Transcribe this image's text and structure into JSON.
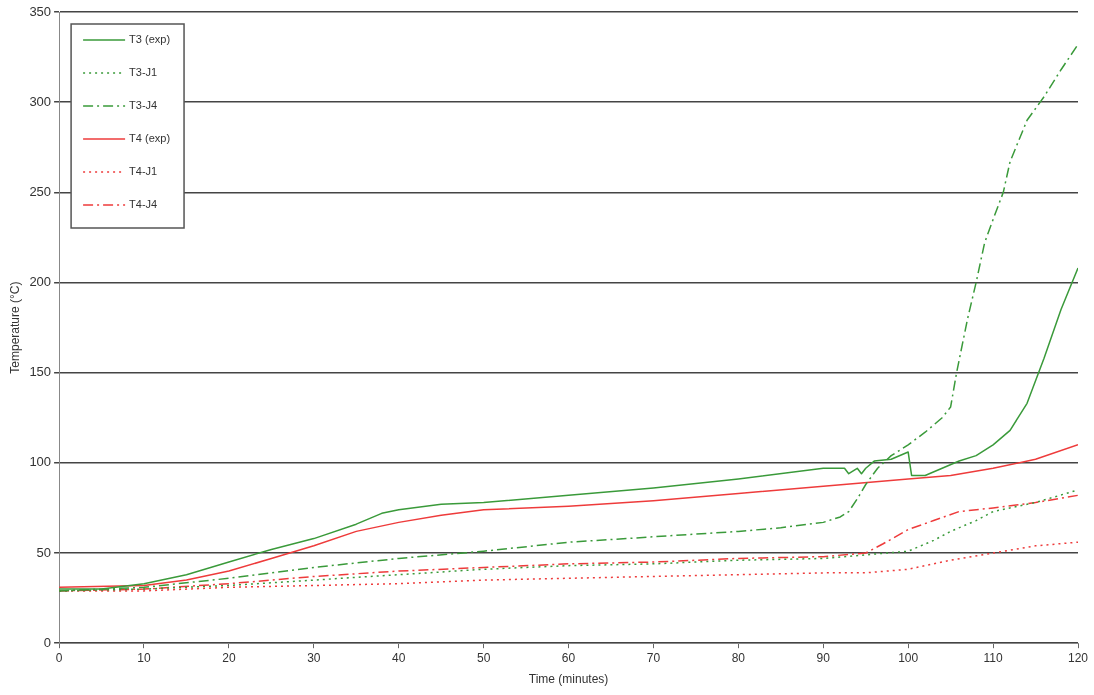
{
  "chart_data": {
    "type": "line",
    "xlabel": "Time (minutes)",
    "ylabel": "Temperature (°C)",
    "xlim": [
      0,
      120
    ],
    "xticks": [
      0,
      10,
      20,
      30,
      40,
      50,
      60,
      70,
      80,
      90,
      100,
      110,
      120
    ],
    "ylim": [
      0,
      350
    ],
    "yticks": [
      0,
      50,
      100,
      150,
      200,
      250,
      300,
      350
    ],
    "grid": "y",
    "legend": "top left",
    "marker": "none",
    "series": [
      {
        "name": "T3 (exp)",
        "color": "#3a9a3a",
        "line_style": "solid",
        "x": [
          0,
          5,
          10,
          15,
          20,
          25,
          30,
          35,
          38,
          40,
          45,
          50,
          60,
          70,
          80,
          90,
          92.5,
          93,
          94,
          94.5,
          95,
          96,
          98,
          100,
          100.4,
          102,
          104,
          106,
          108,
          110,
          112,
          114,
          116,
          118,
          120
        ],
        "values": [
          30,
          30,
          33,
          38,
          45,
          52,
          58,
          66,
          72,
          74,
          77,
          78,
          82,
          86,
          91,
          97,
          97,
          94,
          97,
          94,
          97,
          101,
          102,
          106,
          93,
          93,
          97,
          101,
          104,
          110,
          118,
          133,
          158,
          185,
          208
        ]
      },
      {
        "name": "T3-J1",
        "color": "#3a9a3a",
        "line_style": "dotted",
        "x": [
          0,
          10,
          20,
          30,
          40,
          50,
          60,
          70,
          80,
          90,
          95,
          100,
          103,
          105,
          108,
          110,
          115,
          120
        ],
        "values": [
          29,
          30,
          32,
          35,
          38,
          41,
          43,
          44,
          46,
          47,
          49,
          51,
          57,
          62,
          68,
          73,
          78,
          85
        ]
      },
      {
        "name": "T3-J4",
        "color": "#3a9a3a",
        "line_style": "dashdot",
        "x": [
          0,
          10,
          20,
          30,
          40,
          50,
          60,
          70,
          80,
          85,
          90,
          92,
          93,
          94,
          95,
          96.4,
          98,
          100,
          102,
          104,
          105,
          105.7,
          107,
          108,
          109,
          110,
          111.2,
          112,
          114,
          116,
          118,
          120
        ],
        "values": [
          29,
          31,
          36,
          42,
          47,
          51,
          56,
          59,
          62,
          64,
          67,
          70,
          73,
          80,
          88,
          97,
          104,
          110,
          117,
          125,
          131,
          150,
          180,
          200,
          222,
          235,
          250,
          267,
          290,
          303,
          318,
          332
        ]
      },
      {
        "name": "T4 (exp)",
        "color": "#ee3b3b",
        "line_style": "solid",
        "x": [
          0,
          10,
          15,
          20,
          25,
          30,
          35,
          40,
          45,
          50,
          60,
          70,
          80,
          90,
          100,
          105,
          110,
          115,
          120
        ],
        "values": [
          31,
          32,
          35,
          40,
          47,
          54,
          62,
          67,
          71,
          74,
          76,
          79,
          83,
          87,
          91,
          93,
          97,
          102,
          110
        ]
      },
      {
        "name": "T4-J1",
        "color": "#ee3b3b",
        "line_style": "dotted",
        "x": [
          0,
          10,
          20,
          30,
          40,
          50,
          60,
          70,
          80,
          90,
          95,
          100,
          105,
          110,
          115,
          120
        ],
        "values": [
          29,
          29,
          31,
          32,
          33,
          35,
          36,
          37,
          38,
          39,
          39,
          41,
          46,
          50,
          54,
          56
        ]
      },
      {
        "name": "T4-J4",
        "color": "#ee3b3b",
        "line_style": "dashdot",
        "x": [
          0,
          10,
          20,
          30,
          40,
          50,
          60,
          70,
          80,
          90,
          95,
          97,
          100,
          103,
          106,
          110,
          115,
          120
        ],
        "values": [
          29,
          30,
          33,
          37,
          40,
          42,
          44,
          45,
          47,
          48,
          50,
          55,
          63,
          68,
          73,
          75,
          78,
          82
        ]
      }
    ]
  }
}
